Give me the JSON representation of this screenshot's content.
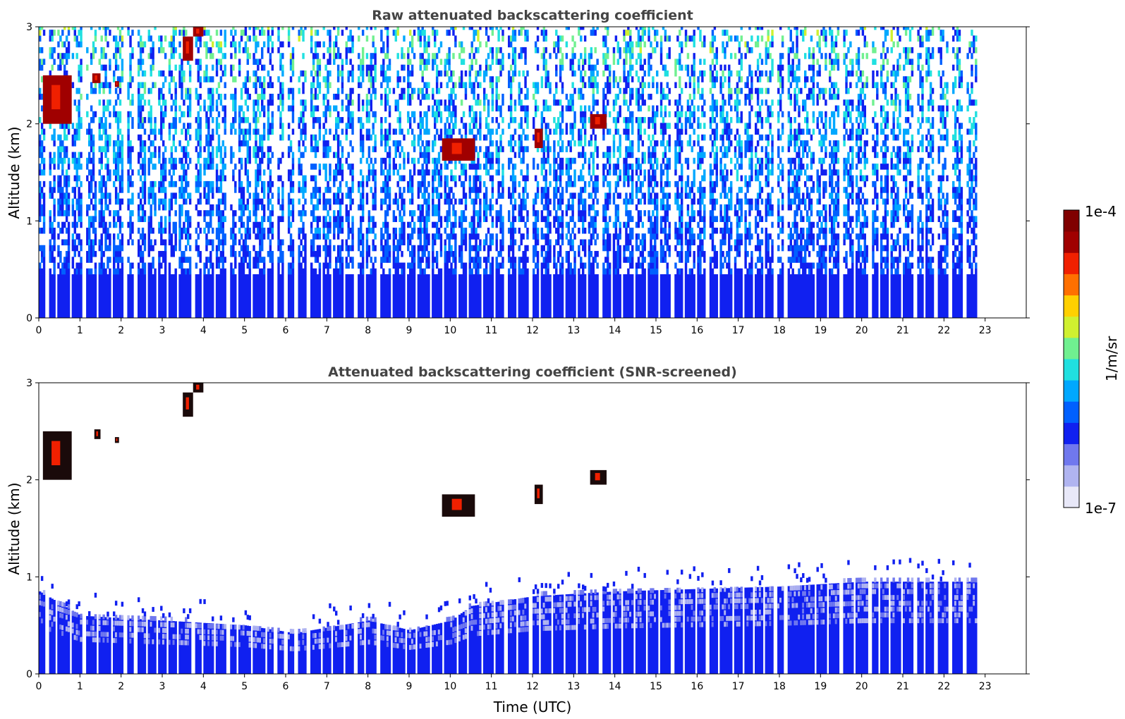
{
  "chart_data": [
    {
      "type": "heatmap",
      "title": "Raw attenuated backscattering coefficient",
      "xlabel": "",
      "ylabel": "Altitude (km)",
      "xlim": [
        0,
        24
      ],
      "ylim": [
        0,
        3
      ],
      "x_ticks": [
        "0",
        "1",
        "2",
        "3",
        "4",
        "5",
        "6",
        "7",
        "8",
        "9",
        "10",
        "11",
        "12",
        "13",
        "14",
        "15",
        "16",
        "17",
        "18",
        "19",
        "20",
        "21",
        "22",
        "23"
      ],
      "y_ticks": [
        "0",
        "1",
        "2",
        "3"
      ],
      "data_end_time_utc": 22.85,
      "surface_layer_top_km": 0.45,
      "noise_signal_top_km": 3.0,
      "cloud_features": [
        {
          "time_start": 0.1,
          "time_end": 0.8,
          "alt_low_km": 2.0,
          "alt_high_km": 2.5,
          "level": "1e-4"
        },
        {
          "time_start": 1.3,
          "time_end": 1.5,
          "alt_low_km": 2.42,
          "alt_high_km": 2.52,
          "level": "1e-4"
        },
        {
          "time_start": 1.85,
          "time_end": 1.95,
          "alt_low_km": 2.38,
          "alt_high_km": 2.44,
          "level": "1e-4"
        },
        {
          "time_start": 3.5,
          "time_end": 3.75,
          "alt_low_km": 2.65,
          "alt_high_km": 2.9,
          "level": "1e-4"
        },
        {
          "time_start": 3.75,
          "time_end": 4.0,
          "alt_low_km": 2.9,
          "alt_high_km": 3.0,
          "level": "1e-4"
        },
        {
          "time_start": 9.8,
          "time_end": 10.6,
          "alt_low_km": 1.62,
          "alt_high_km": 1.85,
          "level": "1e-4"
        },
        {
          "time_start": 12.05,
          "time_end": 12.25,
          "alt_low_km": 1.75,
          "alt_high_km": 1.95,
          "level": "1e-4"
        },
        {
          "time_start": 13.4,
          "time_end": 13.8,
          "alt_low_km": 1.95,
          "alt_high_km": 2.1,
          "level": "1e-4"
        }
      ]
    },
    {
      "type": "heatmap",
      "title": "Attenuated backscattering coefficient (SNR-screened)",
      "xlabel": "Time (UTC)",
      "ylabel": "Altitude (km)",
      "xlim": [
        0,
        24
      ],
      "ylim": [
        0,
        3
      ],
      "x_ticks": [
        "0",
        "1",
        "2",
        "3",
        "4",
        "5",
        "6",
        "7",
        "8",
        "9",
        "10",
        "11",
        "12",
        "13",
        "14",
        "15",
        "16",
        "17",
        "18",
        "19",
        "20",
        "21",
        "22",
        "23"
      ],
      "y_ticks": [
        "0",
        "1",
        "2",
        "3"
      ],
      "data_end_time_utc": 22.85,
      "boundary_layer_top_km": [
        {
          "time": 0.0,
          "alt_km": 0.85
        },
        {
          "time": 1.0,
          "alt_km": 0.6
        },
        {
          "time": 3.0,
          "alt_km": 0.55
        },
        {
          "time": 5.0,
          "alt_km": 0.5
        },
        {
          "time": 6.2,
          "alt_km": 0.42
        },
        {
          "time": 8.0,
          "alt_km": 0.55
        },
        {
          "time": 9.0,
          "alt_km": 0.45
        },
        {
          "time": 10.0,
          "alt_km": 0.55
        },
        {
          "time": 10.5,
          "alt_km": 0.7
        },
        {
          "time": 12.0,
          "alt_km": 0.8
        },
        {
          "time": 14.0,
          "alt_km": 0.85
        },
        {
          "time": 18.0,
          "alt_km": 0.9
        },
        {
          "time": 20.0,
          "alt_km": 0.95
        },
        {
          "time": 22.85,
          "alt_km": 0.95
        }
      ],
      "cloud_features": [
        {
          "time_start": 0.1,
          "time_end": 0.8,
          "alt_low_km": 2.0,
          "alt_high_km": 2.5,
          "level": "1e-4"
        },
        {
          "time_start": 1.35,
          "time_end": 1.5,
          "alt_low_km": 2.42,
          "alt_high_km": 2.52,
          "level": "1e-4"
        },
        {
          "time_start": 1.85,
          "time_end": 1.95,
          "alt_low_km": 2.38,
          "alt_high_km": 2.44,
          "level": "1e-4"
        },
        {
          "time_start": 3.5,
          "time_end": 3.75,
          "alt_low_km": 2.65,
          "alt_high_km": 2.9,
          "level": "1e-4"
        },
        {
          "time_start": 3.75,
          "time_end": 4.0,
          "alt_low_km": 2.9,
          "alt_high_km": 3.0,
          "level": "1e-4"
        },
        {
          "time_start": 9.8,
          "time_end": 10.6,
          "alt_low_km": 1.62,
          "alt_high_km": 1.85,
          "level": "1e-4"
        },
        {
          "time_start": 12.05,
          "time_end": 12.25,
          "alt_low_km": 1.75,
          "alt_high_km": 1.95,
          "level": "1e-4"
        },
        {
          "time_start": 13.4,
          "time_end": 13.8,
          "alt_low_km": 1.95,
          "alt_high_km": 2.1,
          "level": "1e-4"
        }
      ]
    }
  ],
  "colorbar": {
    "label": "1/m/sr",
    "max_label": "1e-4",
    "min_label": "1e-7",
    "colormap": "jet",
    "colors": [
      "#e8e8f8",
      "#b0b4f0",
      "#7078ee",
      "#1020f0",
      "#0060ff",
      "#00a8ff",
      "#20e0e0",
      "#70f090",
      "#d0f030",
      "#ffd000",
      "#ff7000",
      "#f02000",
      "#a00000",
      "#800000"
    ]
  }
}
